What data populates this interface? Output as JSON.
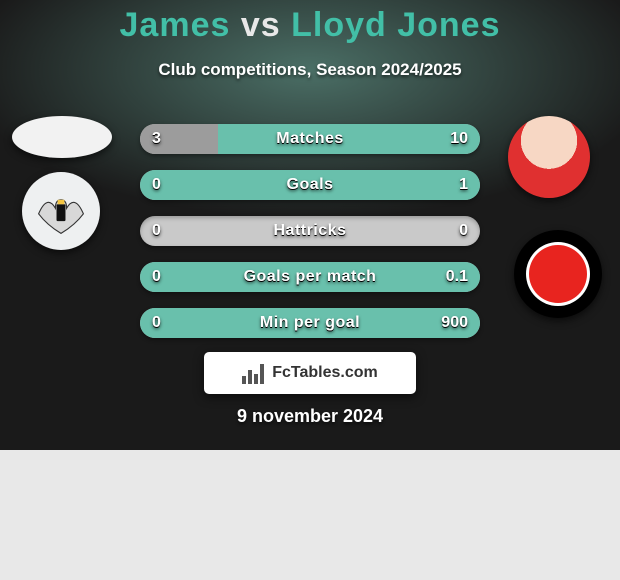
{
  "title": {
    "p1": "James",
    "vs": " vs ",
    "p2": "Lloyd Jones",
    "color_p1": "#42bfa7",
    "color_vs": "#e8e8e8",
    "color_p2": "#42bfa7"
  },
  "subtitle": "Club competitions, Season 2024/2025",
  "date": "9 november 2024",
  "brand": "FcTables.com",
  "colors": {
    "bar_bg": "#c9c9c9",
    "seg_left": "#9c9c9c",
    "seg_right": "#69c0ac",
    "badge_right_ring": "#000000",
    "badge_right_center": "#e8241f"
  },
  "bar_config": {
    "height": 30,
    "radius": 15,
    "gap": 16,
    "label_fontsize": 16,
    "value_fontsize": 16,
    "min_seg_pct": 6
  },
  "bars": [
    {
      "label": "Matches",
      "left_raw": 3,
      "right_raw": 10,
      "left": "3",
      "right": "10"
    },
    {
      "label": "Goals",
      "left_raw": 0,
      "right_raw": 1,
      "left": "0",
      "right": "1"
    },
    {
      "label": "Hattricks",
      "left_raw": 0,
      "right_raw": 0,
      "left": "0",
      "right": "0"
    },
    {
      "label": "Goals per match",
      "left_raw": 0,
      "right_raw": 0.1,
      "left": "0",
      "right": "0.1"
    },
    {
      "label": "Min per goal",
      "left_raw": 0,
      "right_raw": 900,
      "left": "0",
      "right": "900"
    }
  ]
}
